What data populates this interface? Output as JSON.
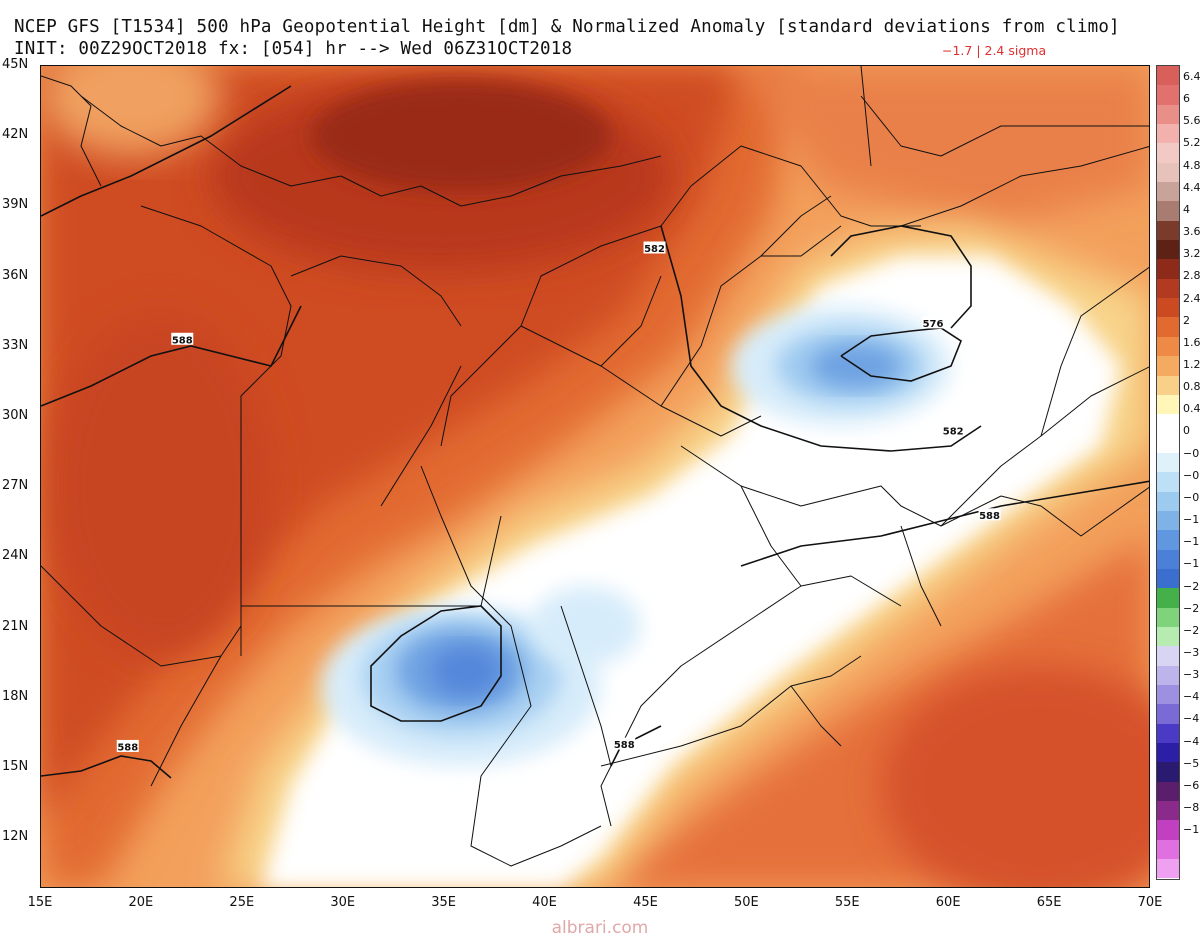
{
  "header": {
    "title_line1": "NCEP GFS [T1534] 500 hPa Geopotential Height [dm] & Normalized Anomaly [standard deviations from climo]",
    "title_line2": "INIT: 00Z29OCT2018 fx: [054] hr --> Wed 06Z31OCT2018",
    "sigma_range": "−1.7 | 2.4 sigma"
  },
  "map": {
    "lat_labels": [
      "45N",
      "42N",
      "39N",
      "36N",
      "33N",
      "30N",
      "27N",
      "24N",
      "21N",
      "18N",
      "15N",
      "12N"
    ],
    "lon_labels": [
      "15E",
      "20E",
      "25E",
      "30E",
      "35E",
      "40E",
      "45E",
      "50E",
      "55E",
      "60E",
      "65E",
      "70E"
    ],
    "contour_labels": [
      {
        "text": "582",
        "lon": 45.4,
        "lat": 37.2
      },
      {
        "text": "588",
        "lon": 22.0,
        "lat": 33.3
      },
      {
        "text": "576",
        "lon": 59.2,
        "lat": 34.0
      },
      {
        "text": "582",
        "lon": 60.2,
        "lat": 29.4
      },
      {
        "text": "588",
        "lon": 62.0,
        "lat": 25.8
      },
      {
        "text": "588",
        "lon": 43.9,
        "lat": 16.0
      },
      {
        "text": "588",
        "lon": 19.3,
        "lat": 15.9
      }
    ]
  },
  "legend": {
    "labels": [
      "6.4",
      "6",
      "5.6",
      "5.2",
      "4.8",
      "4.4",
      "4",
      "3.6",
      "3.2",
      "2.8",
      "2.4",
      "2",
      "1.6",
      "1.2",
      "0.8",
      "0.4",
      "0",
      "−0",
      "−0",
      "−0",
      "−1",
      "−1",
      "−1",
      "−2",
      "−2",
      "−2",
      "−3",
      "−3",
      "−4",
      "−4",
      "−4",
      "−5",
      "−6",
      "−8",
      "−1"
    ],
    "colors": [
      "#d9605a",
      "#e2706c",
      "#ea8e8a",
      "#f3b1ad",
      "#f2c9c4",
      "#e6c2bb",
      "#c9a39a",
      "#a97c72",
      "#7a3a2c",
      "#5d2116",
      "#8e2a1a",
      "#b23a20",
      "#cc4a22",
      "#e06a30",
      "#ee8a45",
      "#f5aa62",
      "#f8d08a",
      "#fff6b8",
      "#ffffff",
      "#ffffff",
      "#dff1fb",
      "#bde0f6",
      "#9ccbef",
      "#7fb3e8",
      "#5f98e0",
      "#4a80d8",
      "#3a6fd0",
      "#44b04a",
      "#7fd37a",
      "#b6ecb0",
      "#d8d4f4",
      "#bdb4ec",
      "#9d90e0",
      "#7a6ad6",
      "#4a3ac6",
      "#2c1fa6",
      "#2a1a70",
      "#5a1e6a",
      "#8a2a8a",
      "#c040c0",
      "#e070e0",
      "#f0a0f0"
    ]
  },
  "watermark": "albrari.com"
}
